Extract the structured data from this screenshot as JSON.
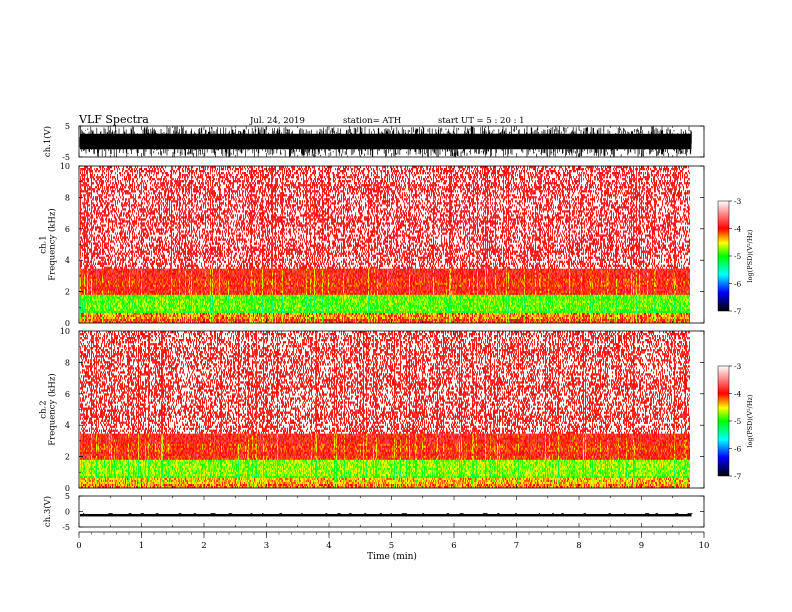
{
  "header": {
    "title": "VLF  Spectra",
    "date": "Jul.  24, 2019",
    "station": "station= ATH",
    "start_ut": "start  UT  =    5  : 20 : 1"
  },
  "chart_data": [
    {
      "type": "line",
      "name": "ch1-waveform",
      "ylabel": "ch.1(V)",
      "ylim": [
        -5,
        5
      ],
      "yticks": [
        "5",
        "-5"
      ],
      "xlim": [
        0,
        10
      ],
      "signal": {
        "kind": "noise",
        "amplitude_v": [
          -5,
          5
        ],
        "x_end_min": 9.8
      }
    },
    {
      "type": "heatmap",
      "name": "ch1-spectrogram",
      "ylabel": "ch.1\nFrequency  (kHz)",
      "ylim": [
        0,
        10
      ],
      "yticks": [
        "0",
        "2",
        "4",
        "6",
        "8",
        "10"
      ],
      "xlim": [
        0,
        10
      ],
      "x_end_min": 9.8,
      "bands": [
        {
          "f_khz": [
            0.0,
            0.6
          ],
          "level": -4.1
        },
        {
          "f_khz": [
            0.6,
            1.8
          ],
          "level": -4.8
        },
        {
          "f_khz": [
            1.8,
            2.1
          ],
          "level": -4.0
        },
        {
          "f_khz": [
            2.1,
            3.5
          ],
          "level": -3.9
        },
        {
          "f_khz": [
            3.5,
            10.0
          ],
          "level": -3.2
        }
      ],
      "colorbar": {
        "label": "log(PSD)(V²/Hz)",
        "range": [
          -7,
          -3
        ],
        "ticks": [
          "-3",
          "-4",
          "-5",
          "-6",
          "-7"
        ],
        "stops": [
          "#000000",
          "#0000ff",
          "#00ffff",
          "#00ff00",
          "#ffff00",
          "#ff0000",
          "#ffffff"
        ]
      }
    },
    {
      "type": "heatmap",
      "name": "ch2-spectrogram",
      "ylabel": "ch.2\nFrequency  (kHz)",
      "ylim": [
        0,
        10
      ],
      "yticks": [
        "0",
        "2",
        "4",
        "6",
        "8",
        "10"
      ],
      "xlim": [
        0,
        10
      ],
      "x_end_min": 9.8,
      "bands": [
        {
          "f_khz": [
            0.0,
            0.7
          ],
          "level": -4.2
        },
        {
          "f_khz": [
            0.7,
            1.8
          ],
          "level": -4.7
        },
        {
          "f_khz": [
            1.8,
            2.1
          ],
          "level": -4.0
        },
        {
          "f_khz": [
            2.1,
            3.5
          ],
          "level": -3.9
        },
        {
          "f_khz": [
            3.5,
            10.0
          ],
          "level": -3.2
        }
      ],
      "colorbar": {
        "label": "log(PSD)(V²/Hz)",
        "range": [
          -7,
          -3
        ],
        "ticks": [
          "-3",
          "-4",
          "-5",
          "-6",
          "-7"
        ],
        "stops": [
          "#000000",
          "#0000ff",
          "#00ffff",
          "#00ff00",
          "#ffff00",
          "#ff0000",
          "#ffffff"
        ]
      }
    },
    {
      "type": "line",
      "name": "ch3-waveform",
      "ylabel": "ch.3(V)",
      "ylim": [
        -5,
        5
      ],
      "yticks": [
        "5",
        "0",
        "-5"
      ],
      "xlim": [
        0,
        10
      ],
      "xlabel": "Time  (min)",
      "xticks": [
        "0",
        "1",
        "2",
        "3",
        "4",
        "5",
        "6",
        "7",
        "8",
        "9",
        "10"
      ],
      "signal": {
        "kind": "flat",
        "level_v": [
          -1.6,
          -0.8
        ],
        "x_end_min": 9.8
      }
    }
  ]
}
